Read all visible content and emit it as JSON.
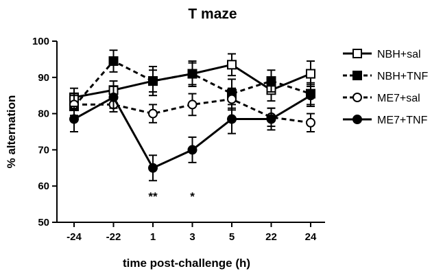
{
  "chart_data": {
    "type": "line",
    "title": "T maze",
    "xlabel": "time post-challenge  (h)",
    "ylabel": "% alternation",
    "categories": [
      "-24",
      "-22",
      "1",
      "3",
      "5",
      "22",
      "24"
    ],
    "ylim": [
      50,
      100
    ],
    "yticks": [
      50,
      60,
      70,
      80,
      90,
      100
    ],
    "error_bars": true,
    "grid": false,
    "legend_position": "right",
    "series": [
      {
        "name": "NBH+sal",
        "marker": "open-square",
        "line": "solid",
        "color": "#000000",
        "values": [
          84.5,
          86.5,
          89.0,
          91.0,
          93.5,
          86.5,
          91.0
        ],
        "errors": [
          2.5,
          2.5,
          3.0,
          3.0,
          3.0,
          3.0,
          3.5
        ]
      },
      {
        "name": "NBH+TNF",
        "marker": "filled-square",
        "line": "dashed",
        "color": "#000000",
        "values": [
          82.0,
          94.5,
          89.0,
          91.0,
          85.5,
          89.0,
          85.5
        ],
        "errors": [
          3.0,
          3.0,
          4.0,
          3.5,
          4.0,
          3.0,
          3.0
        ]
      },
      {
        "name": "ME7+sal",
        "marker": "open-circle",
        "line": "dashed",
        "color": "#000000",
        "values": [
          82.5,
          82.5,
          80.0,
          82.5,
          84.0,
          79.0,
          77.5
        ],
        "errors": [
          3.0,
          2.0,
          2.5,
          3.0,
          3.0,
          2.5,
          2.5
        ]
      },
      {
        "name": "ME7+TNF",
        "marker": "filled-circle",
        "line": "solid",
        "color": "#000000",
        "values": [
          78.5,
          84.5,
          65.0,
          70.0,
          78.5,
          78.5,
          85.0
        ],
        "errors": [
          3.5,
          3.0,
          3.5,
          3.5,
          4.0,
          3.0,
          3.0
        ]
      }
    ],
    "annotations": [
      {
        "text": "**",
        "category": "1",
        "y": 58
      },
      {
        "text": "*",
        "category": "3",
        "y": 58
      }
    ]
  }
}
